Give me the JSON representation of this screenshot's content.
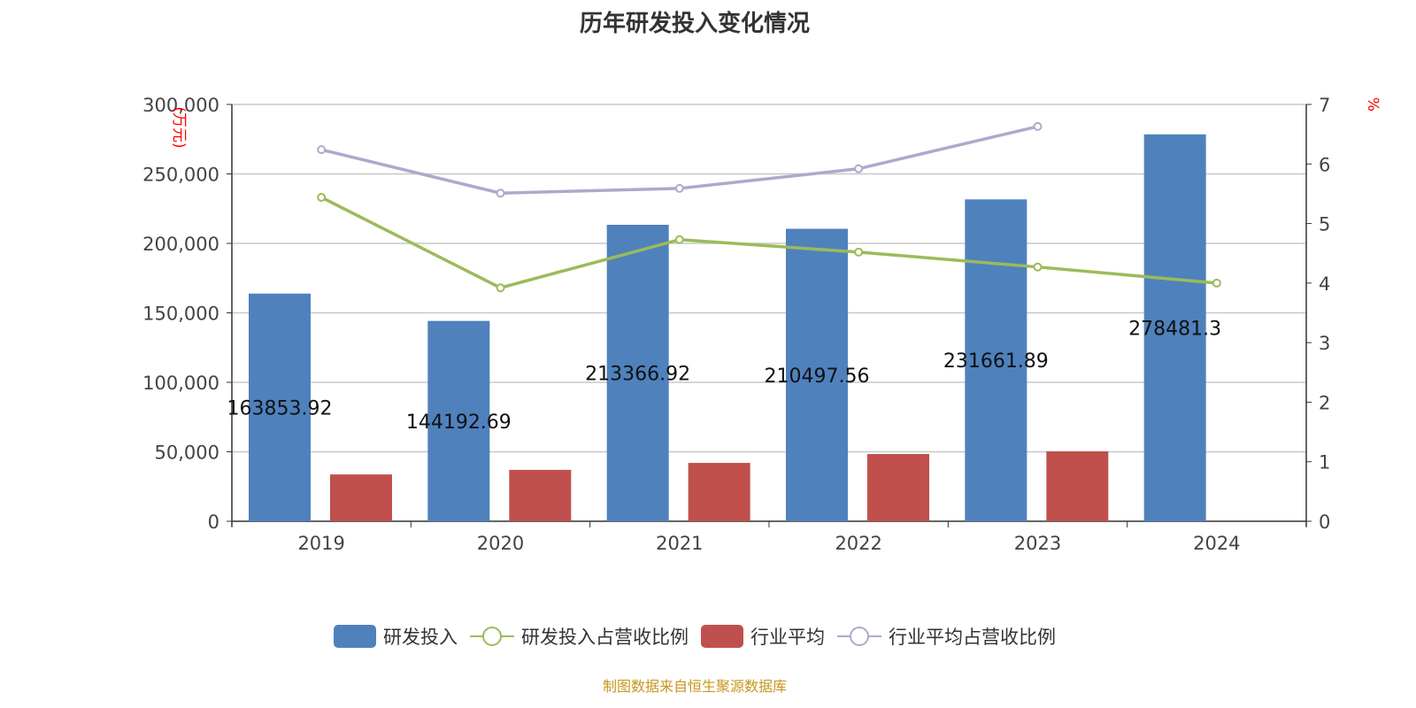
{
  "title": "历年研发投入变化情况",
  "source": "制图数据来自恒生聚源数据库",
  "chart_data": {
    "type": "bar",
    "title": "历年研发投入变化情况",
    "categories": [
      "2019",
      "2020",
      "2021",
      "2022",
      "2023",
      "2024"
    ],
    "left_axis": {
      "label": "(万元)",
      "ylim": [
        0,
        300000
      ],
      "ticks": [
        "0",
        "50,000",
        "100,000",
        "150,000",
        "200,000",
        "250,000",
        "300,000"
      ]
    },
    "right_axis": {
      "label": "%",
      "ylim": [
        0,
        7
      ],
      "ticks": [
        "0",
        "1",
        "2",
        "3",
        "4",
        "5",
        "6",
        "7"
      ]
    },
    "grid": true,
    "legend_position": "bottom",
    "series": [
      {
        "name": "研发投入",
        "type": "bar",
        "axis": "left",
        "color": "#4f81bd",
        "values": [
          163853.92,
          144192.69,
          213366.92,
          210497.56,
          231661.89,
          278481.3
        ],
        "labels": [
          "163853.92",
          "144192.69",
          "213366.92",
          "210497.56",
          "231661.89",
          "278481.3"
        ]
      },
      {
        "name": "研发投入占营收比例",
        "type": "line",
        "axis": "right",
        "color": "#9bbb59",
        "values": [
          5.44,
          3.92,
          4.73,
          4.52,
          4.27,
          4.0
        ]
      },
      {
        "name": "行业平均",
        "type": "bar",
        "axis": "left",
        "color": "#c0504d",
        "values": [
          33700,
          37000,
          42000,
          48400,
          50300,
          null
        ]
      },
      {
        "name": "行业平均占营收比例",
        "type": "line",
        "axis": "right",
        "color": "#b3a6cc",
        "values": [
          6.24,
          5.51,
          5.59,
          5.92,
          6.63,
          null
        ]
      }
    ]
  }
}
